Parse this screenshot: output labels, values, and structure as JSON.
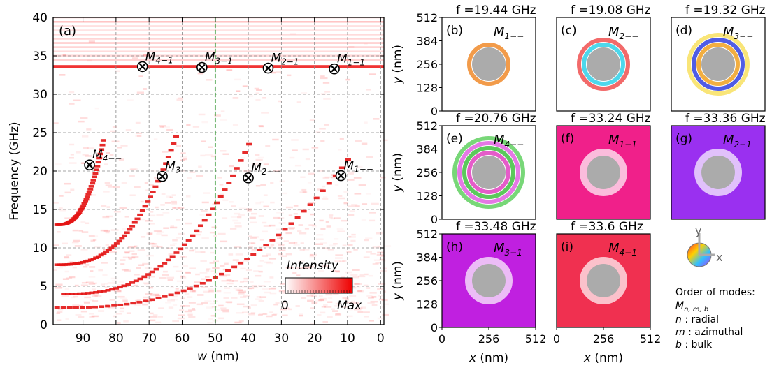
{
  "main_plot": {
    "panel_label": "(a)",
    "xlabel_var": "w",
    "xlabel_unit": " (nm)",
    "ylabel": "Frequency (GHz)",
    "xticks": [
      90,
      80,
      70,
      60,
      50,
      40,
      30,
      20,
      10,
      0
    ],
    "yticks": [
      0,
      5,
      10,
      15,
      20,
      25,
      30,
      35,
      40
    ],
    "colorbar": {
      "label": "Intensity",
      "min_label": "0",
      "max_label": "Max"
    }
  },
  "chart_data": {
    "type": "heatmap",
    "x_range": [
      99,
      -1
    ],
    "y_range": [
      0,
      40
    ],
    "xlabel": "w (nm)",
    "ylabel": "Frequency (GHz)",
    "x_reversed": true,
    "grid": true,
    "highlight_w": 50,
    "bulk_band": {
      "start": 33.6,
      "end": 33.8
    },
    "branches": [
      {
        "name": "M1",
        "y0": 2.2,
        "y1": 21.5,
        "w0": 98,
        "w1": 10
      },
      {
        "name": "M2",
        "y0": 4.0,
        "y1": 23.5,
        "w0": 96,
        "w1": 40
      },
      {
        "name": "M3",
        "y0": 7.8,
        "y1": 24.5,
        "w0": 98,
        "w1": 62
      },
      {
        "name": "M4",
        "y0": 13.0,
        "y1": 24.0,
        "w0": 98,
        "w1": 84
      }
    ],
    "markers": [
      {
        "label": "M",
        "sub": "4−1",
        "w": 72,
        "f": 33.6
      },
      {
        "label": "M",
        "sub": "3−1",
        "w": 54,
        "f": 33.5
      },
      {
        "label": "M",
        "sub": "2−1",
        "w": 34,
        "f": 33.4
      },
      {
        "label": "M",
        "sub": "1−1",
        "w": 14,
        "f": 33.3
      },
      {
        "label": "M",
        "sub": "4−−",
        "w": 88,
        "f": 20.8
      },
      {
        "label": "M",
        "sub": "3−−",
        "w": 66,
        "f": 19.3
      },
      {
        "label": "M",
        "sub": "2−−",
        "w": 40,
        "f": 19.1
      },
      {
        "label": "M",
        "sub": "1−−",
        "w": 12,
        "f": 19.4
      }
    ]
  },
  "panels": [
    {
      "id": "b",
      "label": "(b)",
      "freq": "f =19.44 GHz",
      "mode": "M",
      "mode_sub": "1−−",
      "bg": "#ffffff",
      "ring_colors": [
        "#f08a2a"
      ]
    },
    {
      "id": "c",
      "label": "(c)",
      "freq": "f =19.08 GHz",
      "mode": "M",
      "mode_sub": "2−−",
      "bg": "#ffffff",
      "ring_colors": [
        "#2fd0e8",
        "#f05050"
      ]
    },
    {
      "id": "d",
      "label": "(d)",
      "freq": "f =19.32 GHz",
      "mode": "M",
      "mode_sub": "3−−",
      "bg": "#ffffff",
      "ring_colors": [
        "#f0a020",
        "#3040e0",
        "#f8e060"
      ]
    },
    {
      "id": "e",
      "label": "(e)",
      "freq": "f =20.76 GHz",
      "mode": "M",
      "mode_sub": "4−−",
      "bg": "#ffffff",
      "ring_colors": [
        "#e040c0",
        "#40c040",
        "#e060e0",
        "#60d060"
      ]
    },
    {
      "id": "f",
      "label": "(f)",
      "freq": "f =33.24 GHz",
      "mode": "M",
      "mode_sub": "1−1",
      "bg": "#f0208a",
      "ring_colors": [
        "#ffffff"
      ]
    },
    {
      "id": "g",
      "label": "(g)",
      "freq": "f =33.36 GHz",
      "mode": "M",
      "mode_sub": "2−1",
      "bg": "#9a30f0",
      "ring_colors": [
        "#ffffff"
      ]
    },
    {
      "id": "h",
      "label": "(h)",
      "freq": "f =33.48 GHz",
      "mode": "M",
      "mode_sub": "3−1",
      "bg": "#c020e0",
      "ring_colors": [
        "#ffffff"
      ]
    },
    {
      "id": "i",
      "label": "(i)",
      "freq": "f =33.6 GHz",
      "mode": "M",
      "mode_sub": "4−1",
      "bg": "#f03050",
      "ring_colors": [
        "#ffffff"
      ]
    }
  ],
  "panel_axes": {
    "ticks": [
      "0",
      "128",
      "256",
      "384",
      "512"
    ],
    "xticks": [
      "0",
      "256",
      "512"
    ],
    "ylabel_var": "y",
    "xlabel_var": "x",
    "unit": " (nm)"
  },
  "compass": {
    "y_label": "y",
    "x_label": "x"
  },
  "legend": {
    "title": "Order of modes:",
    "notation_main": "M",
    "notation_sub": "n, m, b",
    "items": [
      {
        "sym": "n",
        "text": " : radial"
      },
      {
        "sym": "m",
        "text": " : azimuthal"
      },
      {
        "sym": "b",
        "text": " : bulk"
      }
    ]
  }
}
